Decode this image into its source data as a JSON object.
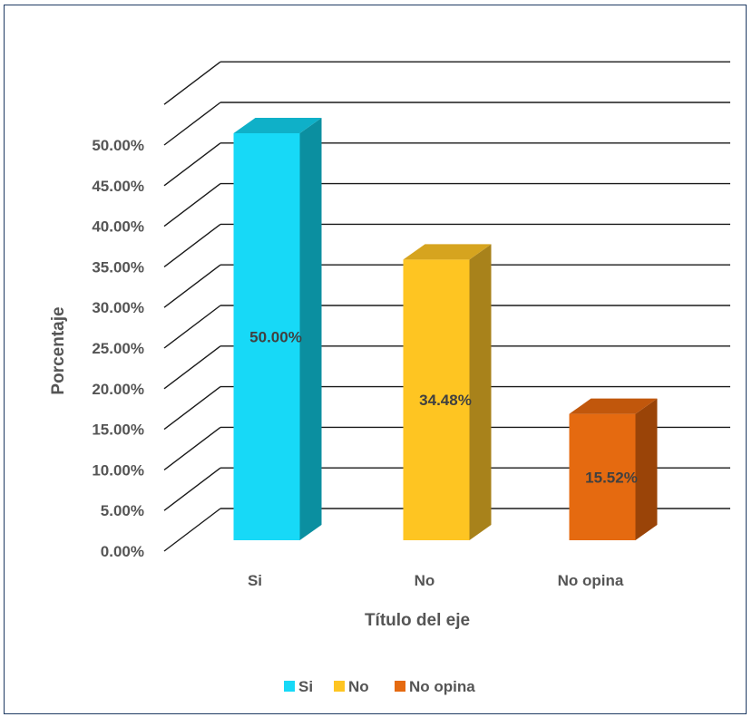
{
  "chart_data": {
    "type": "bar",
    "categories": [
      "Si",
      "No",
      "No opina"
    ],
    "values": [
      50.0,
      34.48,
      15.52
    ],
    "data_labels": [
      "50.00%",
      "34.48%",
      "15.52%"
    ],
    "colors": [
      "#17d9f7",
      "#fec522",
      "#e56a10"
    ],
    "side_colors": [
      "#0b8fa0",
      "#a8821b",
      "#9a4408"
    ],
    "top_colors": [
      "#0fb0c8",
      "#d6a41f",
      "#c1570c"
    ],
    "ylim": [
      0,
      50
    ],
    "y_ticks": [
      0,
      5,
      10,
      15,
      20,
      25,
      30,
      35,
      40,
      45,
      50
    ],
    "y_tick_labels": [
      "0.00%",
      "5.00%",
      "10.00%",
      "15.00%",
      "20.00%",
      "25.00%",
      "30.00%",
      "35.00%",
      "40.00%",
      "45.00%",
      "50.00%"
    ],
    "ylabel": "Porcentaje",
    "xlabel": "Título del eje",
    "legend": [
      "Si",
      "No",
      "No opina"
    ],
    "legend_position": "bottom",
    "grid": true,
    "style": "3d-column"
  }
}
